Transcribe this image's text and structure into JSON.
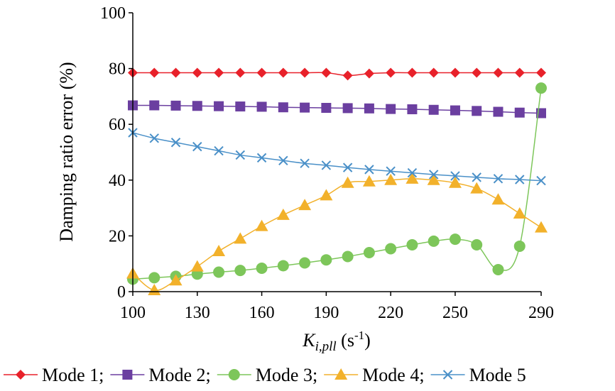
{
  "chart_data": {
    "type": "line",
    "xlabel": {
      "main": "K",
      "sub": "i,pll",
      "unit_pre": " (s",
      "unit_sup": "-1",
      "unit_post": ")"
    },
    "ylabel": "Damping ratio error (%)",
    "xlim": [
      100,
      290
    ],
    "ylim": [
      0,
      100
    ],
    "xticks": [
      100,
      130,
      160,
      190,
      220,
      250,
      290
    ],
    "yticks": [
      0,
      20,
      40,
      60,
      80,
      100
    ],
    "x": [
      100,
      110,
      120,
      130,
      140,
      150,
      160,
      170,
      180,
      190,
      200,
      210,
      220,
      230,
      240,
      250,
      260,
      270,
      280,
      290
    ],
    "series": [
      {
        "name": "Mode 1;",
        "color": "#e8212a",
        "marker": "diamond",
        "values": [
          78.5,
          78.5,
          78.5,
          78.5,
          78.5,
          78.5,
          78.5,
          78.5,
          78.5,
          78.5,
          77.5,
          78.2,
          78.5,
          78.5,
          78.5,
          78.5,
          78.5,
          78.5,
          78.5,
          78.5
        ]
      },
      {
        "name": "Mode 2;",
        "color": "#6b3fa0",
        "marker": "square",
        "values": [
          66.8,
          66.8,
          66.7,
          66.6,
          66.5,
          66.4,
          66.3,
          66.1,
          66.0,
          65.9,
          65.8,
          65.7,
          65.5,
          65.4,
          65.2,
          65.0,
          64.8,
          64.5,
          64.2,
          64.0
        ]
      },
      {
        "name": "Mode 3;",
        "color": "#7dc65a",
        "marker": "circle",
        "values": [
          4.5,
          5.0,
          5.5,
          6.3,
          7.0,
          7.6,
          8.4,
          9.3,
          10.3,
          11.4,
          12.6,
          14.0,
          15.4,
          16.8,
          18.1,
          18.8,
          16.8,
          7.9,
          16.3,
          73.0
        ]
      },
      {
        "name": "Mode 4;",
        "color": "#f2b12b",
        "marker": "triangle",
        "values": [
          6.5,
          0.5,
          4.0,
          9.0,
          14.5,
          19.0,
          23.5,
          27.5,
          31.0,
          34.5,
          39.0,
          39.5,
          40.0,
          40.5,
          40.0,
          39.0,
          37.0,
          33.0,
          28.0,
          23.0
        ]
      },
      {
        "name": "Mode 5",
        "color": "#4a90c8",
        "marker": "x",
        "values": [
          57.0,
          55.0,
          53.5,
          52.0,
          50.5,
          49.0,
          48.0,
          47.0,
          46.0,
          45.3,
          44.5,
          43.8,
          43.2,
          42.6,
          42.0,
          41.5,
          41.0,
          40.5,
          40.2,
          39.8
        ]
      }
    ]
  }
}
